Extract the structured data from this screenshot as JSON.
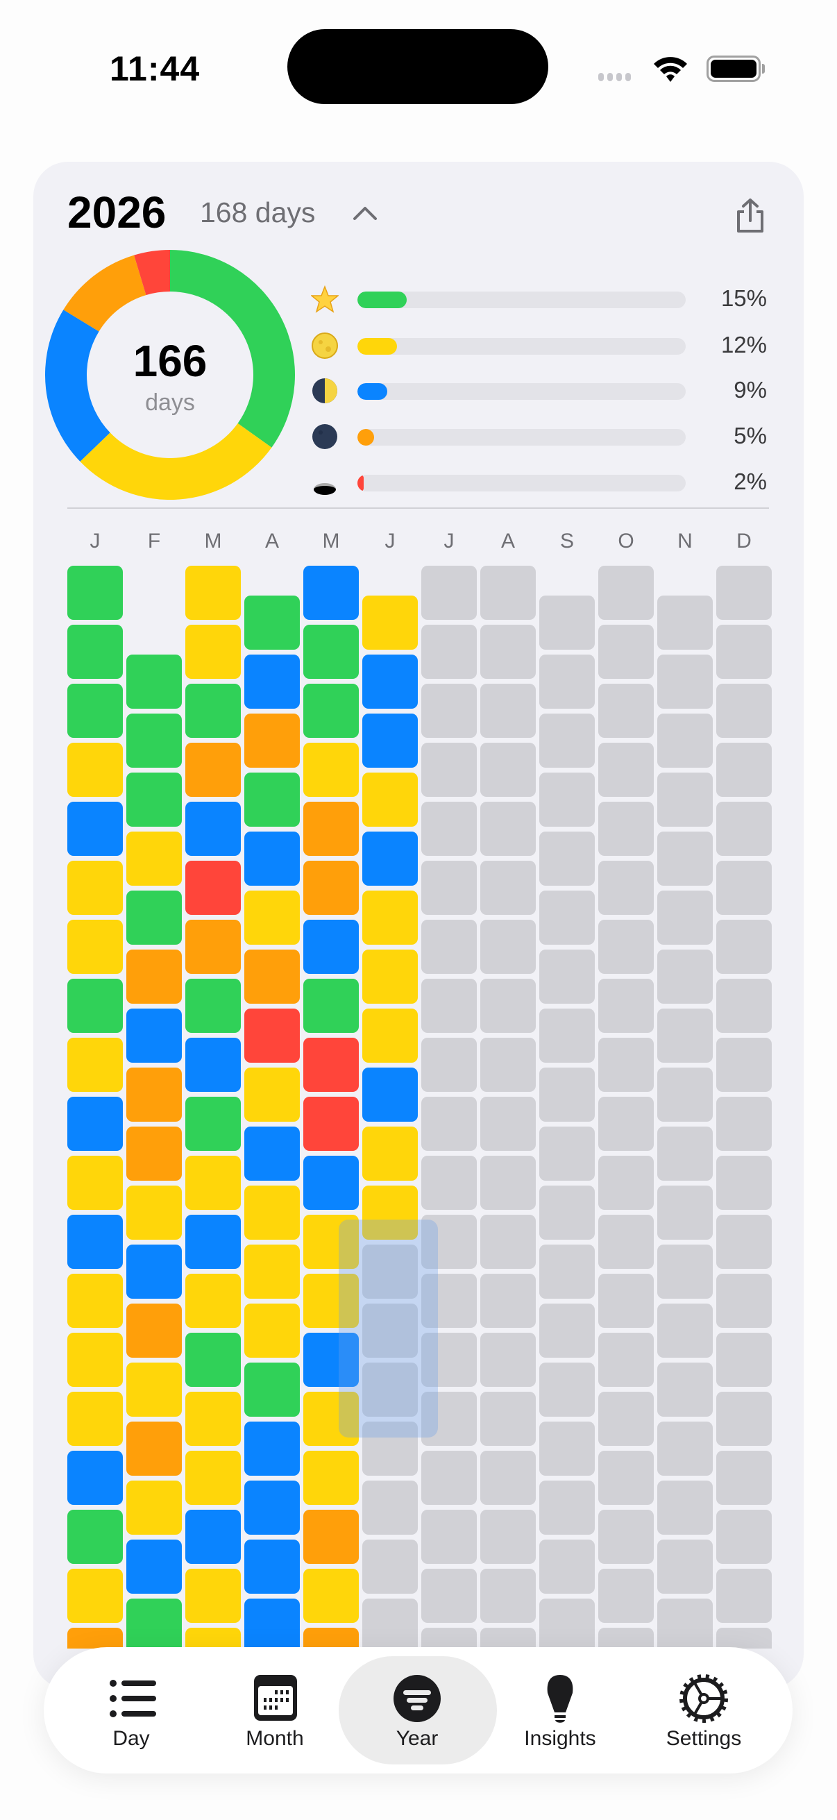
{
  "status_bar": {
    "time": "11:44"
  },
  "header": {
    "year": "2026",
    "days_elapsed": "168 days",
    "chevron_icon": "chevron-up-icon",
    "share_icon": "share-icon"
  },
  "summary": {
    "count": "166",
    "count_label": "days",
    "items": [
      {
        "icon": "star-icon",
        "color": "#30d158",
        "percent": 15,
        "label": "15%"
      },
      {
        "icon": "full-moon-icon",
        "color": "#ffd60a",
        "percent": 12,
        "label": "12%"
      },
      {
        "icon": "half-moon-icon",
        "color": "#0a84ff",
        "percent": 9,
        "label": "9%"
      },
      {
        "icon": "new-moon-icon",
        "color": "#ff9f0a",
        "percent": 5,
        "label": "5%"
      },
      {
        "icon": "hole-icon",
        "color": "#ff453a",
        "percent": 2,
        "label": "2%"
      }
    ]
  },
  "palette": {
    "G": "#30d158",
    "Y": "#ffd60a",
    "B": "#0a84ff",
    "O": "#ff9f0a",
    "R": "#ff453a",
    "-": "#d1d1d6"
  },
  "months": [
    {
      "letter": "J",
      "cells": "GGGYBYYGYBYBYYYBGYO"
    },
    {
      "letter": "F",
      "cells": "GGGYGOBOOYBOYOYBG"
    },
    {
      "letter": "M",
      "cells": "YYGOBROGBGYBYGYYBYY"
    },
    {
      "letter": "A",
      "cells": "GBOGBYORYBYYYGBBBB"
    },
    {
      "letter": "M",
      "cells": "BGGYOOBGRRBYYBYYOYO"
    },
    {
      "letter": "J",
      "cells": "YBBYBYYYBYY-------------------"
    },
    {
      "letter": "J",
      "cells": "-------------------------------"
    },
    {
      "letter": "A",
      "cells": "-------------------------------"
    },
    {
      "letter": "S",
      "cells": "------------------------------"
    },
    {
      "letter": "O",
      "cells": "-------------------------------"
    },
    {
      "letter": "N",
      "cells": "------------------------------"
    },
    {
      "letter": "D",
      "cells": "-------------------------------"
    }
  ],
  "tabs": [
    {
      "label": "Day",
      "icon": "list-icon"
    },
    {
      "label": "Month",
      "icon": "calendar-icon"
    },
    {
      "label": "Year",
      "icon": "year-filter-icon",
      "selected": true
    },
    {
      "label": "Insights",
      "icon": "lightbulb-icon"
    },
    {
      "label": "Settings",
      "icon": "gear-icon"
    }
  ]
}
